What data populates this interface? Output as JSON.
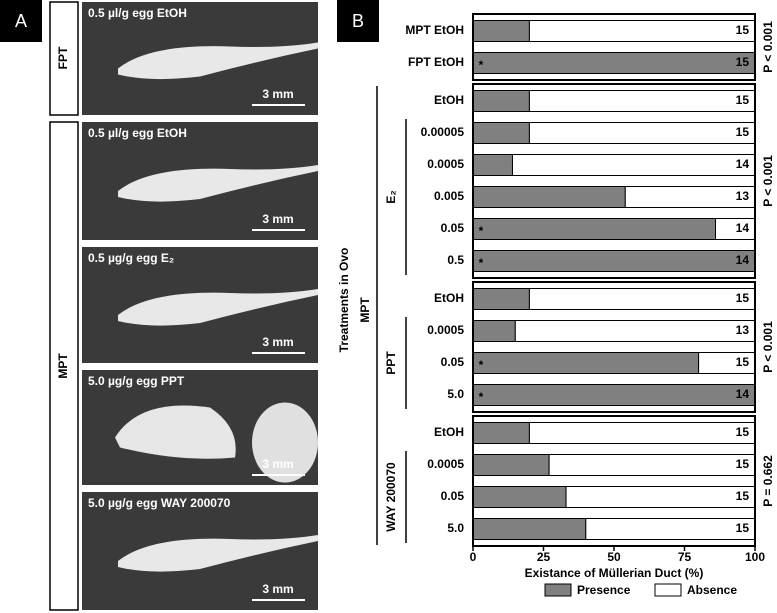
{
  "panel_a": {
    "label": "A",
    "fpt": "FPT",
    "mpt": "MPT",
    "photos": [
      {
        "caption": "0.5 µl/g egg EtOH",
        "scale": "3 mm"
      },
      {
        "caption": "0.5 µl/g egg EtOH",
        "scale": "3 mm"
      },
      {
        "caption": "0.5 µg/g egg E₂",
        "scale": "3 mm"
      },
      {
        "caption": "5.0 µg/g egg PPT",
        "scale": "3 mm"
      },
      {
        "caption": "5.0 µg/g egg WAY 200070",
        "scale": "3 mm"
      }
    ]
  },
  "chart_data": {
    "type": "stacked-barh",
    "panel_label": "B",
    "x_label": "Existance of Müllerian Duct (%)",
    "y_label": "Treatments in Ovo",
    "outer_label": "MPT",
    "categories": [
      "MPT EtOH",
      "FPT EtOH",
      "EtOH",
      "0.00005",
      "0.0005",
      "0.005",
      "0.05",
      "0.5",
      "EtOH",
      "0.0005",
      "0.05",
      "5.0",
      "EtOH",
      "0.0005",
      "0.05",
      "5.0"
    ],
    "series": [
      {
        "name": "Presence",
        "color": "#808080",
        "values": [
          20,
          100,
          20,
          20,
          14,
          54,
          86,
          100,
          20,
          15,
          80,
          100,
          20,
          27,
          33,
          40
        ]
      },
      {
        "name": "Absence",
        "color": "#ffffff",
        "values": [
          80,
          0,
          80,
          80,
          86,
          46,
          14,
          0,
          80,
          85,
          20,
          0,
          80,
          73,
          67,
          60
        ]
      }
    ],
    "n": [
      15,
      15,
      15,
      15,
      14,
      13,
      14,
      14,
      15,
      13,
      15,
      14,
      15,
      15,
      15,
      15
    ],
    "significance": [
      null,
      "*",
      null,
      null,
      null,
      null,
      "*",
      "*",
      null,
      null,
      "*",
      "*",
      null,
      null,
      null,
      null
    ],
    "groups": [
      {
        "rows": [
          0,
          1
        ],
        "p": "P < 0.001"
      },
      {
        "rows": [
          2,
          7
        ],
        "bracket": [
          3,
          7
        ],
        "label": "E₂",
        "p": "P < 0.001"
      },
      {
        "rows": [
          8,
          11
        ],
        "bracket": [
          9,
          11
        ],
        "label": "PPT",
        "p": "P < 0.001"
      },
      {
        "rows": [
          12,
          15
        ],
        "bracket": [
          13,
          15
        ],
        "label": "WAY 200070",
        "p": "P = 0.662"
      }
    ],
    "xlim": [
      0,
      100
    ],
    "xticks": [
      0,
      25,
      50,
      75,
      100
    ]
  }
}
